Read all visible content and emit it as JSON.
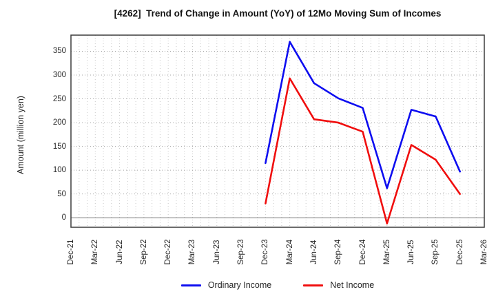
{
  "chart_data": {
    "type": "line",
    "title": "[4262]  Trend of Change in Amount (YoY) of 12Mo Moving Sum of Incomes",
    "ylabel": "Amount (million yen)",
    "categories": [
      "Dec-21",
      "Mar-22",
      "Jun-22",
      "Sep-22",
      "Dec-22",
      "Mar-23",
      "Jun-23",
      "Sep-23",
      "Dec-23",
      "Mar-24",
      "Jun-24",
      "Sep-24",
      "Dec-24",
      "Mar-25",
      "Jun-25",
      "Sep-25",
      "Dec-25",
      "Mar-26"
    ],
    "series": [
      {
        "name": "Ordinary Income",
        "color": "#0d0df0",
        "values": [
          null,
          null,
          null,
          null,
          null,
          null,
          null,
          null,
          115,
          370,
          283,
          251,
          231,
          62,
          227,
          213,
          97,
          null
        ]
      },
      {
        "name": "Net Income",
        "color": "#f00d0d",
        "values": [
          null,
          null,
          null,
          null,
          null,
          null,
          null,
          null,
          30,
          293,
          207,
          200,
          181,
          -12,
          153,
          122,
          50,
          null
        ]
      }
    ],
    "ylim": [
      -20,
      384
    ],
    "yticks": [
      0,
      50,
      100,
      150,
      200,
      250,
      300,
      350
    ],
    "grid": true,
    "minor_x_divisions_per_interval": 3,
    "legend_position": "bottom",
    "colors": {
      "frame": "#3c3c3c",
      "grid_major_h": "#a3a3a3",
      "grid_minor_v": "#c9c9c9",
      "zero_line": "#8c8c8c",
      "background": "#ffffff",
      "text": "#262626"
    }
  }
}
